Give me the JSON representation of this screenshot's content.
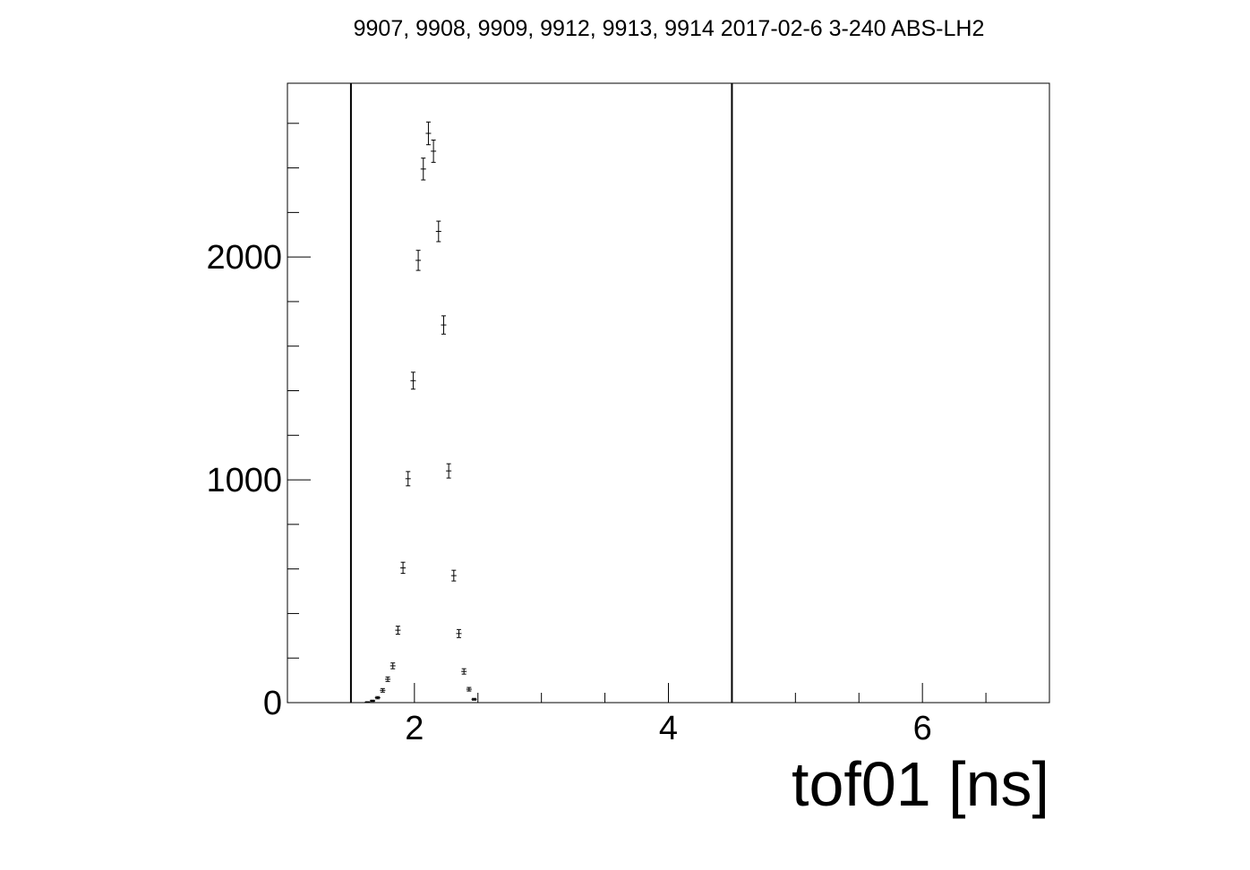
{
  "chart_data": {
    "type": "scatter",
    "title": "9907, 9908, 9909, 9912, 9913, 9914 2017-02-6 3-240 ABS-LH2",
    "xlabel": "tof01 [ns]",
    "ylabel": "",
    "xlim": [
      1.0,
      7.0
    ],
    "ylim": [
      0,
      2780
    ],
    "x_ticks": [
      2,
      4,
      6
    ],
    "y_ticks": [
      0,
      1000,
      2000
    ],
    "grid": false,
    "legend": "none",
    "cut_lines": [
      1.5,
      4.5
    ],
    "series": [
      {
        "marker": "errorbar",
        "x": [
          1.63,
          1.67,
          1.71,
          1.75,
          1.79,
          1.83,
          1.87,
          1.91,
          1.95,
          1.99,
          2.03,
          2.07,
          2.11,
          2.15,
          2.19,
          2.23,
          2.27,
          2.31,
          2.35,
          2.39,
          2.43,
          2.47
        ],
        "y": [
          2,
          8,
          22,
          55,
          105,
          165,
          325,
          605,
          1005,
          1445,
          1985,
          2395,
          2555,
          2475,
          2115,
          1695,
          1040,
          570,
          310,
          140,
          60,
          15
        ],
        "err": [
          2,
          3,
          5,
          8,
          10,
          13,
          18,
          25,
          32,
          38,
          45,
          49,
          51,
          50,
          46,
          41,
          32,
          24,
          18,
          12,
          8,
          4
        ]
      }
    ],
    "colors": {
      "axis": "#000000",
      "marker": "#000000",
      "cut_line": "#000000"
    }
  }
}
